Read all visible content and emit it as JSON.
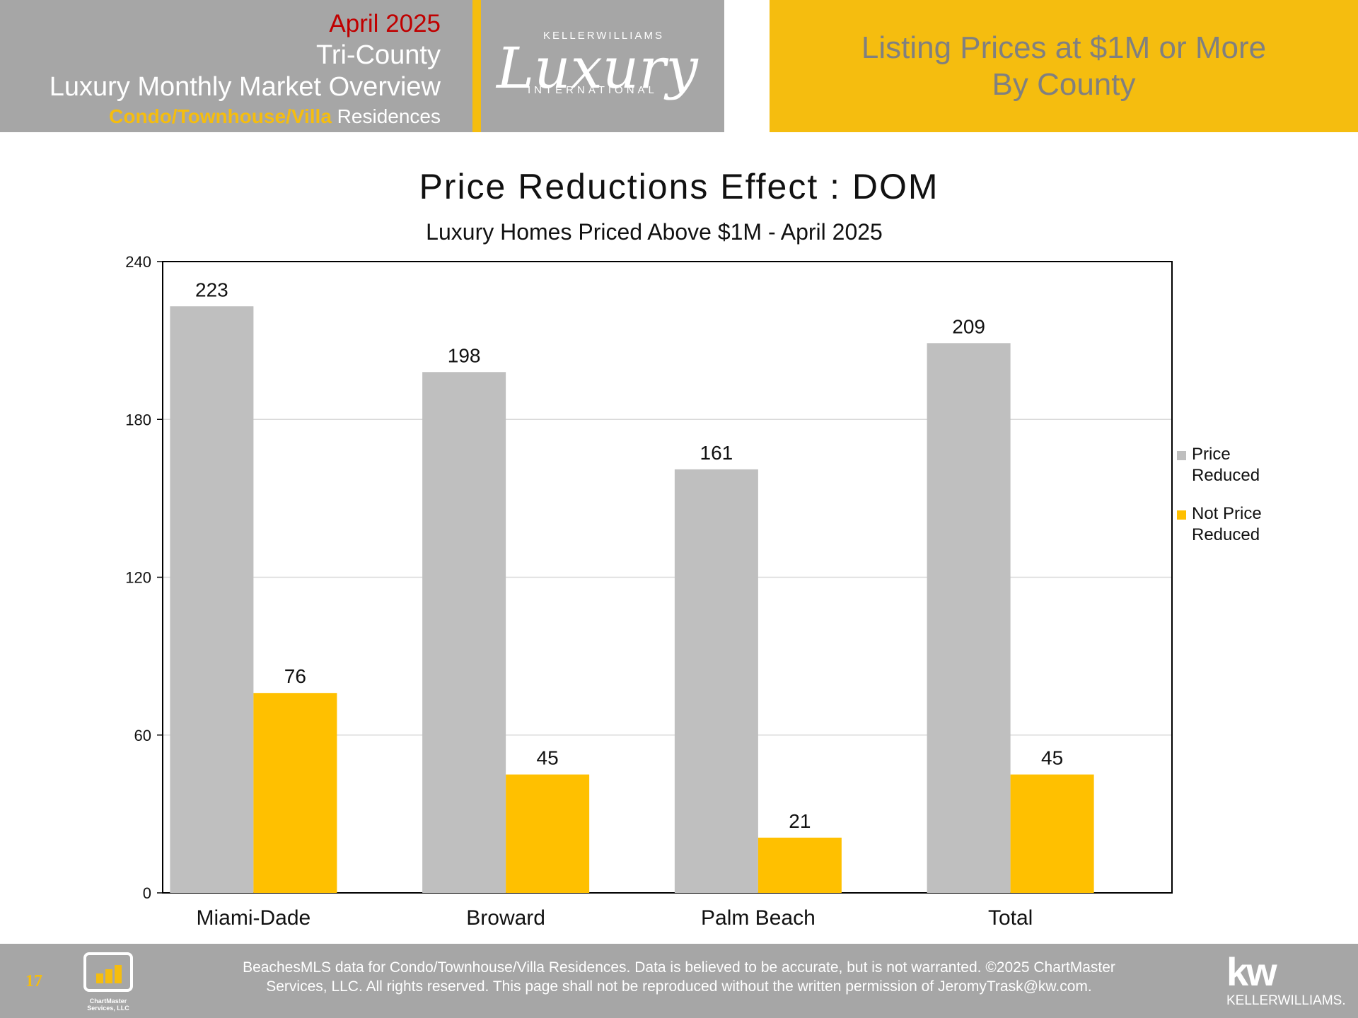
{
  "header": {
    "date": "April 2025",
    "region": "Tri-County",
    "report": "Luxury Monthly Market Overview",
    "type_accent": "Condo/Townhouse/Villa",
    "type_rest": " Residences",
    "logo": {
      "top": "KELLERWILLIAMS",
      "script": "Luxury",
      "bottom": "INTERNATIONAL"
    },
    "banner_line1": "Listing Prices at $1M or More",
    "banner_line2": "By County"
  },
  "chart_data": {
    "type": "bar",
    "title": "Price Reductions Effect : DOM",
    "subtitle": "Luxury Homes Priced Above $1M - April 2025",
    "categories": [
      "Miami-Dade",
      "Broward",
      "Palm Beach",
      "Total"
    ],
    "series": [
      {
        "name": "Price Reduced",
        "values": [
          223,
          198,
          161,
          209
        ],
        "color": "#bfbfbf"
      },
      {
        "name": "Not Price Reduced",
        "values": [
          76,
          45,
          21,
          45
        ],
        "color": "#ffc000"
      }
    ],
    "legend_lines": [
      [
        "Price",
        "Reduced"
      ],
      [
        "Not Price",
        "Reduced"
      ]
    ],
    "ylim": [
      0,
      240
    ],
    "yticks": [
      0,
      60,
      120,
      180,
      240
    ],
    "grid": true,
    "legend_position": "right"
  },
  "footer": {
    "page_number": "17",
    "chartmaster_logo": "ChartMaster Services, LLC",
    "line1": "BeachesMLS data for Condo/Townhouse/Villa Residences.  Data is believed to be accurate, but is not warranted.   ©2025  ChartMaster",
    "line2": "Services, LLC.  All rights reserved. This page shall not be reproduced without the written permission of JeromyTrask@kw.com.",
    "kw_mark": "kw",
    "kw_word": "KELLERWILLIAMS."
  },
  "colors": {
    "header_gray": "#a6a6a6",
    "accent_gold": "#f5bd0f",
    "date_red": "#c00000",
    "banner_text": "#808080"
  }
}
